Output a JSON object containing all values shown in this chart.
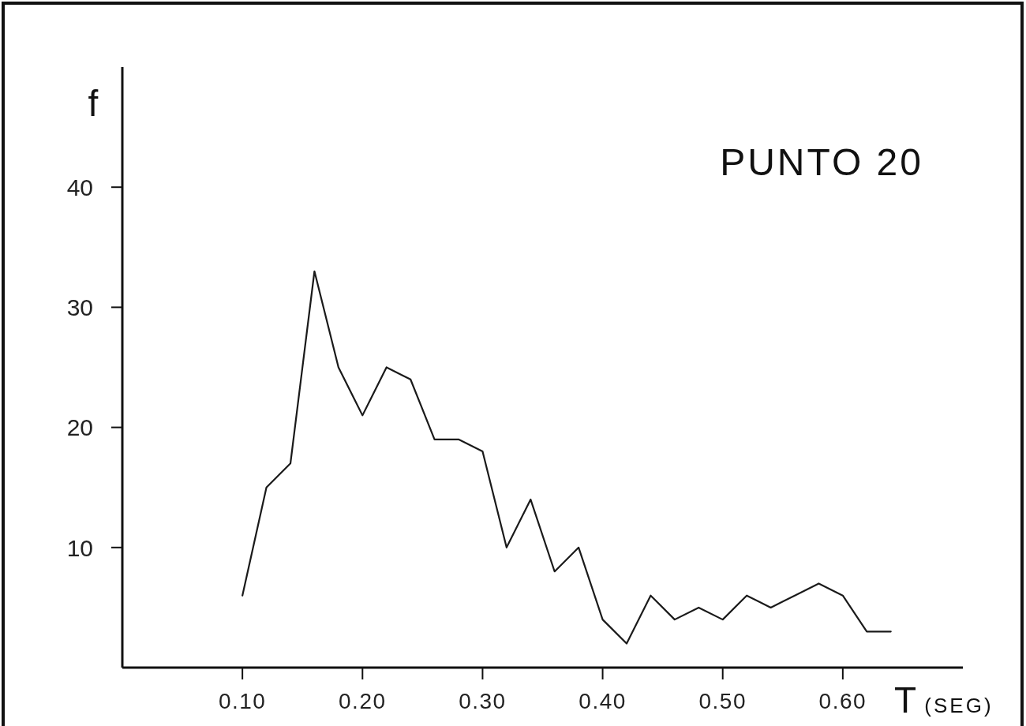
{
  "chart_data": {
    "type": "line",
    "title": "PUNTO 20",
    "xlabel": "T (SEG)",
    "ylabel": "f",
    "x": [
      0.1,
      0.12,
      0.14,
      0.16,
      0.18,
      0.2,
      0.22,
      0.24,
      0.26,
      0.28,
      0.3,
      0.32,
      0.34,
      0.36,
      0.38,
      0.4,
      0.42,
      0.44,
      0.46,
      0.48,
      0.5,
      0.52,
      0.54,
      0.56,
      0.58,
      0.6,
      0.62,
      0.64
    ],
    "values": [
      6,
      15,
      17,
      33,
      25,
      21,
      25,
      24,
      19,
      19,
      18,
      10,
      14,
      8,
      10,
      4,
      2,
      6,
      4,
      5,
      4,
      6,
      5,
      6,
      7,
      6,
      3,
      3
    ],
    "color": "#1a1a1a",
    "line_style": "solid",
    "xlim": [
      0,
      0.7
    ],
    "ylim": [
      0,
      50
    ],
    "xticks": [
      {
        "value": 0.1,
        "label": "0.10"
      },
      {
        "value": 0.2,
        "label": "0.20"
      },
      {
        "value": 0.3,
        "label": "0.30"
      },
      {
        "value": 0.4,
        "label": "0.40"
      },
      {
        "value": 0.5,
        "label": "0.50"
      },
      {
        "value": 0.6,
        "label": "0.60"
      }
    ],
    "yticks": [
      10,
      20,
      30,
      40
    ]
  }
}
